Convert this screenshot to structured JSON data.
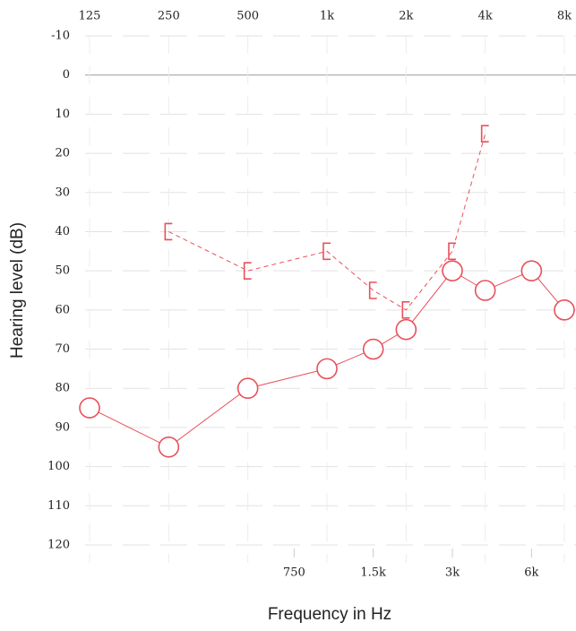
{
  "chart_data": {
    "type": "line",
    "xlabel": "Frequency in Hz",
    "ylabel": "Hearing level (dB)",
    "xscale": "log",
    "xlim": [
      125,
      8000
    ],
    "ylim": [
      -10,
      120
    ],
    "y_inverted": true,
    "xticks": [
      125,
      250,
      500,
      {
        "value": 1000,
        "label": "1k"
      },
      {
        "value": 2000,
        "label": "2k"
      },
      {
        "value": 4000,
        "label": "4k"
      },
      {
        "value": 8000,
        "label": "8k"
      }
    ],
    "xticks_bottom": [
      750,
      {
        "value": 1500,
        "label": "1.5k"
      },
      {
        "value": 3000,
        "label": "3k"
      },
      {
        "value": 6000,
        "label": "6k"
      }
    ],
    "yticks": [
      -10,
      0,
      10,
      20,
      30,
      40,
      50,
      60,
      70,
      80,
      90,
      100,
      110,
      120
    ],
    "grid": true,
    "series": [
      {
        "color": "#e8505b",
        "marker": "circle",
        "linestyle": "solid",
        "x": [
          125,
          250,
          500,
          1000,
          1500,
          2000,
          3000,
          4000,
          6000,
          8000
        ],
        "values": [
          85,
          95,
          80,
          75,
          70,
          65,
          50,
          55,
          50,
          60
        ]
      },
      {
        "color": "#e8505b",
        "marker": "bracket",
        "linestyle": "dashed",
        "x": [
          250,
          500,
          1000,
          1500,
          2000,
          3000,
          4000
        ],
        "values": [
          40,
          50,
          45,
          55,
          60,
          45,
          15
        ]
      }
    ]
  }
}
